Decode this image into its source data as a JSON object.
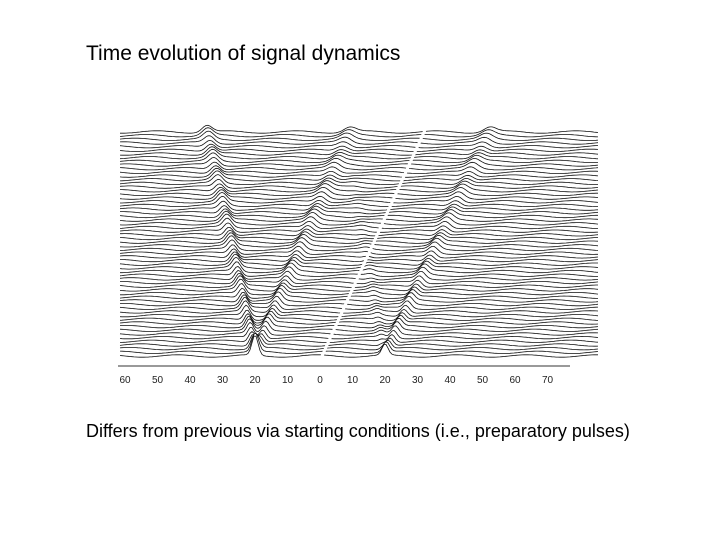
{
  "slide": {
    "title": "Time evolution of signal dynamics",
    "figure": {
      "axis_labels": [
        "60",
        "50",
        "40",
        "30",
        "20",
        "10",
        "0",
        "10",
        "20",
        "30",
        "40",
        "50",
        "60",
        "70"
      ]
    },
    "caption": "Differs from previous via starting conditions (i.e., preparatory pulses)"
  }
}
